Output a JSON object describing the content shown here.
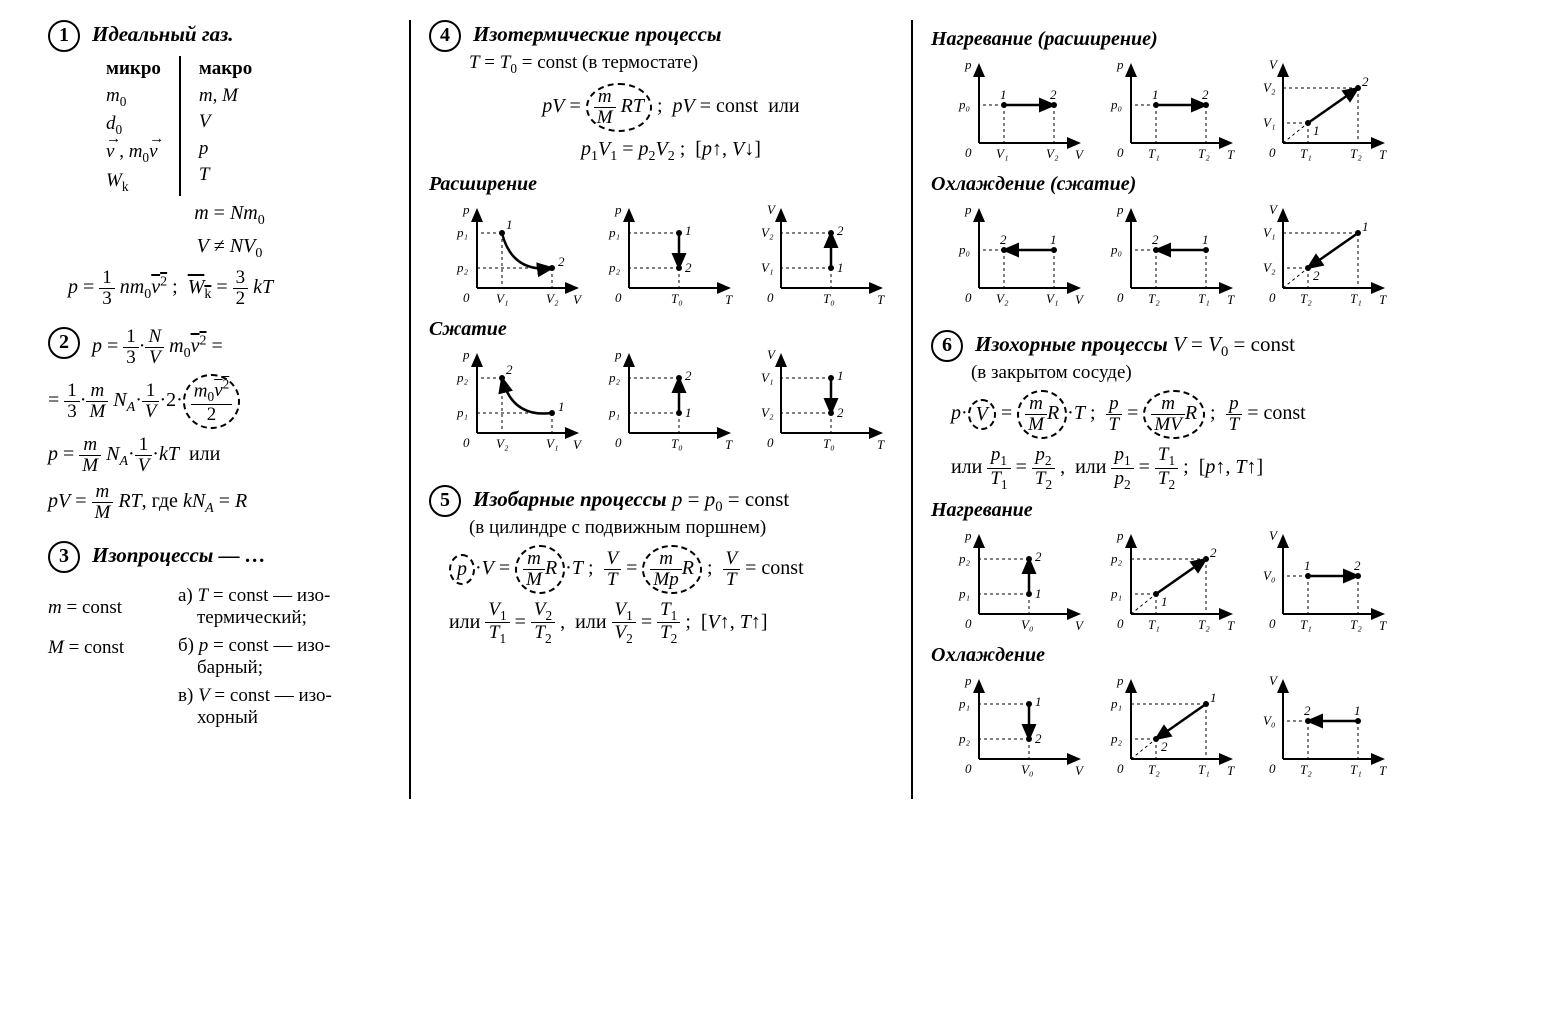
{
  "s1": {
    "title": "Идеальный газ.",
    "micro_hd": "микро",
    "macro_hd": "макро",
    "micro": [
      "m₀",
      "d₀",
      "v⃗ , m₀v⃗",
      "Wₖ"
    ],
    "macro": [
      "m, M",
      "V",
      "p",
      "T"
    ],
    "eq1": "m = Nm₀",
    "eq2": "V ≠ NV₀",
    "eq3_left": "p = (1/3) n m₀ v̄²",
    "eq3_right": "W̄ₖ = (3/2) kT"
  },
  "s2": {
    "line1": "p = (1/3)·(N/V) m₀v̄² =",
    "line2": "= (1/3)·(m/M) N_A·(1/V)·2·(m₀v̄²/2)",
    "line3": "p = (m/M) N_A·(1/V)·kT  или",
    "line4": "pV = (m/M) RT, где kN_A = R"
  },
  "s3": {
    "title": "Изопроцессы — …",
    "left1": "m = const",
    "left2": "M = const",
    "a": "а) T = const — изотермический;",
    "b": "б) p = const — изобарный;",
    "c": "в) V = const — изохорный"
  },
  "s4": {
    "title": "Изотермические процессы",
    "cond": "T = T₀ = const (в термостате)",
    "eq1": "pV = (m/M) RT ;  pV = const  или",
    "eq2": "p₁V₁ = p₂V₂ ;  [p↑, V↓]",
    "expand": "Расширение",
    "compress": "Сжатие",
    "graphs_expand": [
      {
        "y": "p",
        "x": "V",
        "y1": "p₁",
        "y2": "p₂",
        "x1": "V₁",
        "x2": "V₂",
        "type": "hyperbola_down",
        "pt1": "1",
        "pt2": "2"
      },
      {
        "y": "p",
        "x": "T",
        "y1": "p₁",
        "y2": "p₂",
        "x1": "T₀",
        "type": "vline_down",
        "pt1": "1",
        "pt2": "2"
      },
      {
        "y": "V",
        "x": "T",
        "y1": "V₂",
        "y2": "V₁",
        "x1": "T₀",
        "type": "vline_up",
        "pt1": "2",
        "pt2": "1"
      }
    ],
    "graphs_compress": [
      {
        "y": "p",
        "x": "V",
        "y1": "p₂",
        "y2": "p₁",
        "x1": "V₂",
        "x2": "V₁",
        "type": "hyperbola_up",
        "pt1": "2",
        "pt2": "1"
      },
      {
        "y": "p",
        "x": "T",
        "y1": "p₂",
        "y2": "p₁",
        "x1": "T₀",
        "type": "vline_up",
        "pt1": "2",
        "pt2": "1"
      },
      {
        "y": "V",
        "x": "T",
        "y1": "V₁",
        "y2": "V₂",
        "x1": "T₀",
        "type": "vline_down",
        "pt1": "1",
        "pt2": "2"
      }
    ]
  },
  "s5": {
    "title": "Изобарные процессы p = p₀ = const",
    "cond": "(в цилиндре с подвижным поршнем)",
    "eq1": "p·V = (m/M)R·T ;  V/T = (m/(Mp))R ;  V/T = const",
    "eq2": "или  V₁/T₁ = V₂/T₂ ,  или  V₁/V₂ = T₁/T₂ ;  [V↑, T↑]",
    "heat": "Нагревание (расширение)",
    "cool": "Охлаждение (сжатие)",
    "graphs_heat": [
      {
        "y": "p",
        "x": "V",
        "y1": "p₀",
        "x1": "V₁",
        "x2": "V₂",
        "type": "hline_right",
        "pt1": "1",
        "pt2": "2"
      },
      {
        "y": "p",
        "x": "T",
        "y1": "p₀",
        "x1": "T₁",
        "x2": "T₂",
        "type": "hline_right",
        "pt1": "1",
        "pt2": "2"
      },
      {
        "y": "V",
        "x": "T",
        "y1": "V₂",
        "y2": "V₁",
        "x1": "T₁",
        "x2": "T₂",
        "type": "diag_up",
        "pt1": "1",
        "pt2": "2"
      }
    ],
    "graphs_cool": [
      {
        "y": "p",
        "x": "V",
        "y1": "p₀",
        "x1": "V₂",
        "x2": "V₁",
        "type": "hline_left",
        "pt1": "2",
        "pt2": "1"
      },
      {
        "y": "p",
        "x": "T",
        "y1": "p₀",
        "x1": "T₂",
        "x2": "T₁",
        "type": "hline_left",
        "pt1": "2",
        "pt2": "1"
      },
      {
        "y": "V",
        "x": "T",
        "y1": "V₁",
        "y2": "V₂",
        "x1": "T₂",
        "x2": "T₁",
        "type": "diag_down",
        "pt1": "2",
        "pt2": "1"
      }
    ]
  },
  "s6": {
    "title": "Изохорные процессы V = V₀ = const",
    "cond": "(в закрытом сосуде)",
    "eq1": "p·V = (m/M)R·T ;  p/T = (m/(MV))R ;  p/T = const",
    "eq2": "или  p₁/T₁ = p₂/T₂ ,  или  p₁/p₂ = T₁/T₂ ;  [p↑, T↑]",
    "heat": "Нагревание",
    "cool": "Охлаждение",
    "graphs_heat": [
      {
        "y": "p",
        "x": "V",
        "y1": "p₂",
        "y2": "p₁",
        "x1": "V₀",
        "type": "vline_up",
        "pt1": "2",
        "pt2": "1"
      },
      {
        "y": "p",
        "x": "T",
        "y1": "p₂",
        "y2": "p₁",
        "x1": "T₁",
        "x2": "T₂",
        "type": "diag_up",
        "pt1": "1",
        "pt2": "2"
      },
      {
        "y": "V",
        "x": "T",
        "y1": "V₀",
        "x1": "T₁",
        "x2": "T₂",
        "type": "hline_right",
        "pt1": "1",
        "pt2": "2"
      }
    ],
    "graphs_cool": [
      {
        "y": "p",
        "x": "V",
        "y1": "p₁",
        "y2": "p₂",
        "x1": "V₀",
        "type": "vline_down",
        "pt1": "1",
        "pt2": "2"
      },
      {
        "y": "p",
        "x": "T",
        "y1": "p₁",
        "y2": "p₂",
        "x1": "T₂",
        "x2": "T₁",
        "type": "diag_down",
        "pt1": "2",
        "pt2": "1"
      },
      {
        "y": "V",
        "x": "T",
        "y1": "V₀",
        "x1": "T₂",
        "x2": "T₁",
        "type": "hline_left",
        "pt1": "2",
        "pt2": "1"
      }
    ]
  },
  "style": {
    "axis_color": "#000000",
    "dash_color": "#000000",
    "line_width": 2,
    "arrow_size": 6
  }
}
